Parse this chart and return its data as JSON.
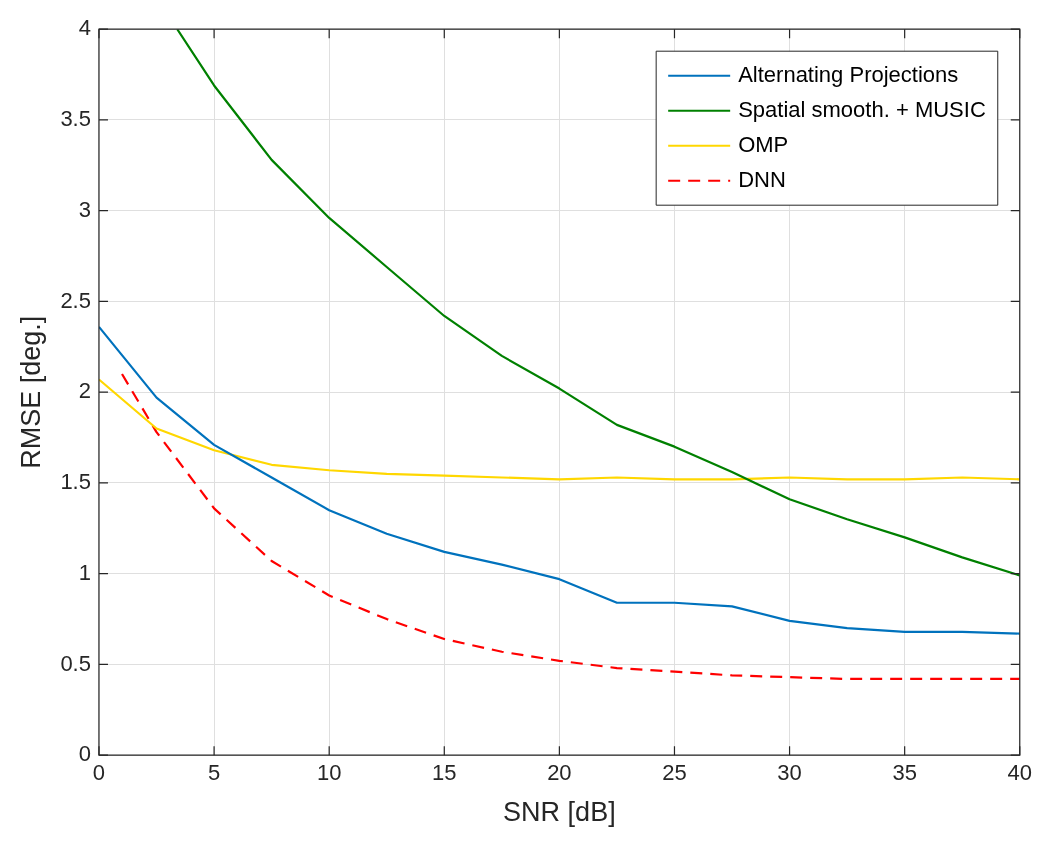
{
  "chart_data": {
    "type": "line",
    "xlabel": "SNR [dB]",
    "ylabel": "RMSE [deg.]",
    "x": [
      0,
      2.5,
      5,
      7.5,
      10,
      12.5,
      15,
      17.5,
      20,
      22.5,
      25,
      27.5,
      30,
      32.5,
      35,
      37.5,
      40
    ],
    "xlim": [
      0,
      40
    ],
    "xticks": [
      0,
      5,
      10,
      15,
      20,
      25,
      30,
      35,
      40
    ],
    "ylim": [
      0,
      4
    ],
    "yticks": [
      0,
      0.5,
      1,
      1.5,
      2,
      2.5,
      3,
      3.5,
      4
    ],
    "grid": true,
    "legend": "top right",
    "marker": "none",
    "series": [
      {
        "name": "Alternating Projections",
        "color": "#0072bd",
        "line_style": "solid",
        "values": [
          2.36,
          1.97,
          1.71,
          1.53,
          1.35,
          1.22,
          1.12,
          1.05,
          0.97,
          0.84,
          0.84,
          0.82,
          0.74,
          0.7,
          0.68,
          0.68,
          0.67
        ]
      },
      {
        "name": "Spatial smooth. + MUSIC",
        "color": "#008000",
        "line_style": "solid",
        "x": [
          3.4,
          5,
          7.5,
          10,
          12.5,
          15,
          17.5,
          20,
          22.5,
          25,
          27.5,
          30,
          32.5,
          35,
          37.5,
          40
        ],
        "values": [
          4.0,
          3.69,
          3.28,
          2.96,
          2.69,
          2.42,
          2.2,
          2.02,
          1.82,
          1.7,
          1.56,
          1.41,
          1.3,
          1.2,
          1.09,
          0.99
        ]
      },
      {
        "name": "OMP",
        "color": "#ffd700",
        "line_style": "solid",
        "values": [
          2.07,
          1.8,
          1.68,
          1.6,
          1.57,
          1.55,
          1.54,
          1.53,
          1.52,
          1.53,
          1.52,
          1.52,
          1.53,
          1.52,
          1.52,
          1.53,
          1.52
        ]
      },
      {
        "name": "DNN",
        "color": "#ff0000",
        "line_style": "dashed",
        "x": [
          1,
          2.5,
          5,
          7.5,
          10,
          12.5,
          15,
          17.5,
          20,
          22.5,
          25,
          27.5,
          30,
          32.5,
          35,
          37.5,
          40
        ],
        "values": [
          2.1,
          1.78,
          1.36,
          1.07,
          0.88,
          0.75,
          0.64,
          0.57,
          0.52,
          0.48,
          0.46,
          0.44,
          0.43,
          0.42,
          0.42,
          0.42,
          0.42
        ]
      }
    ]
  }
}
